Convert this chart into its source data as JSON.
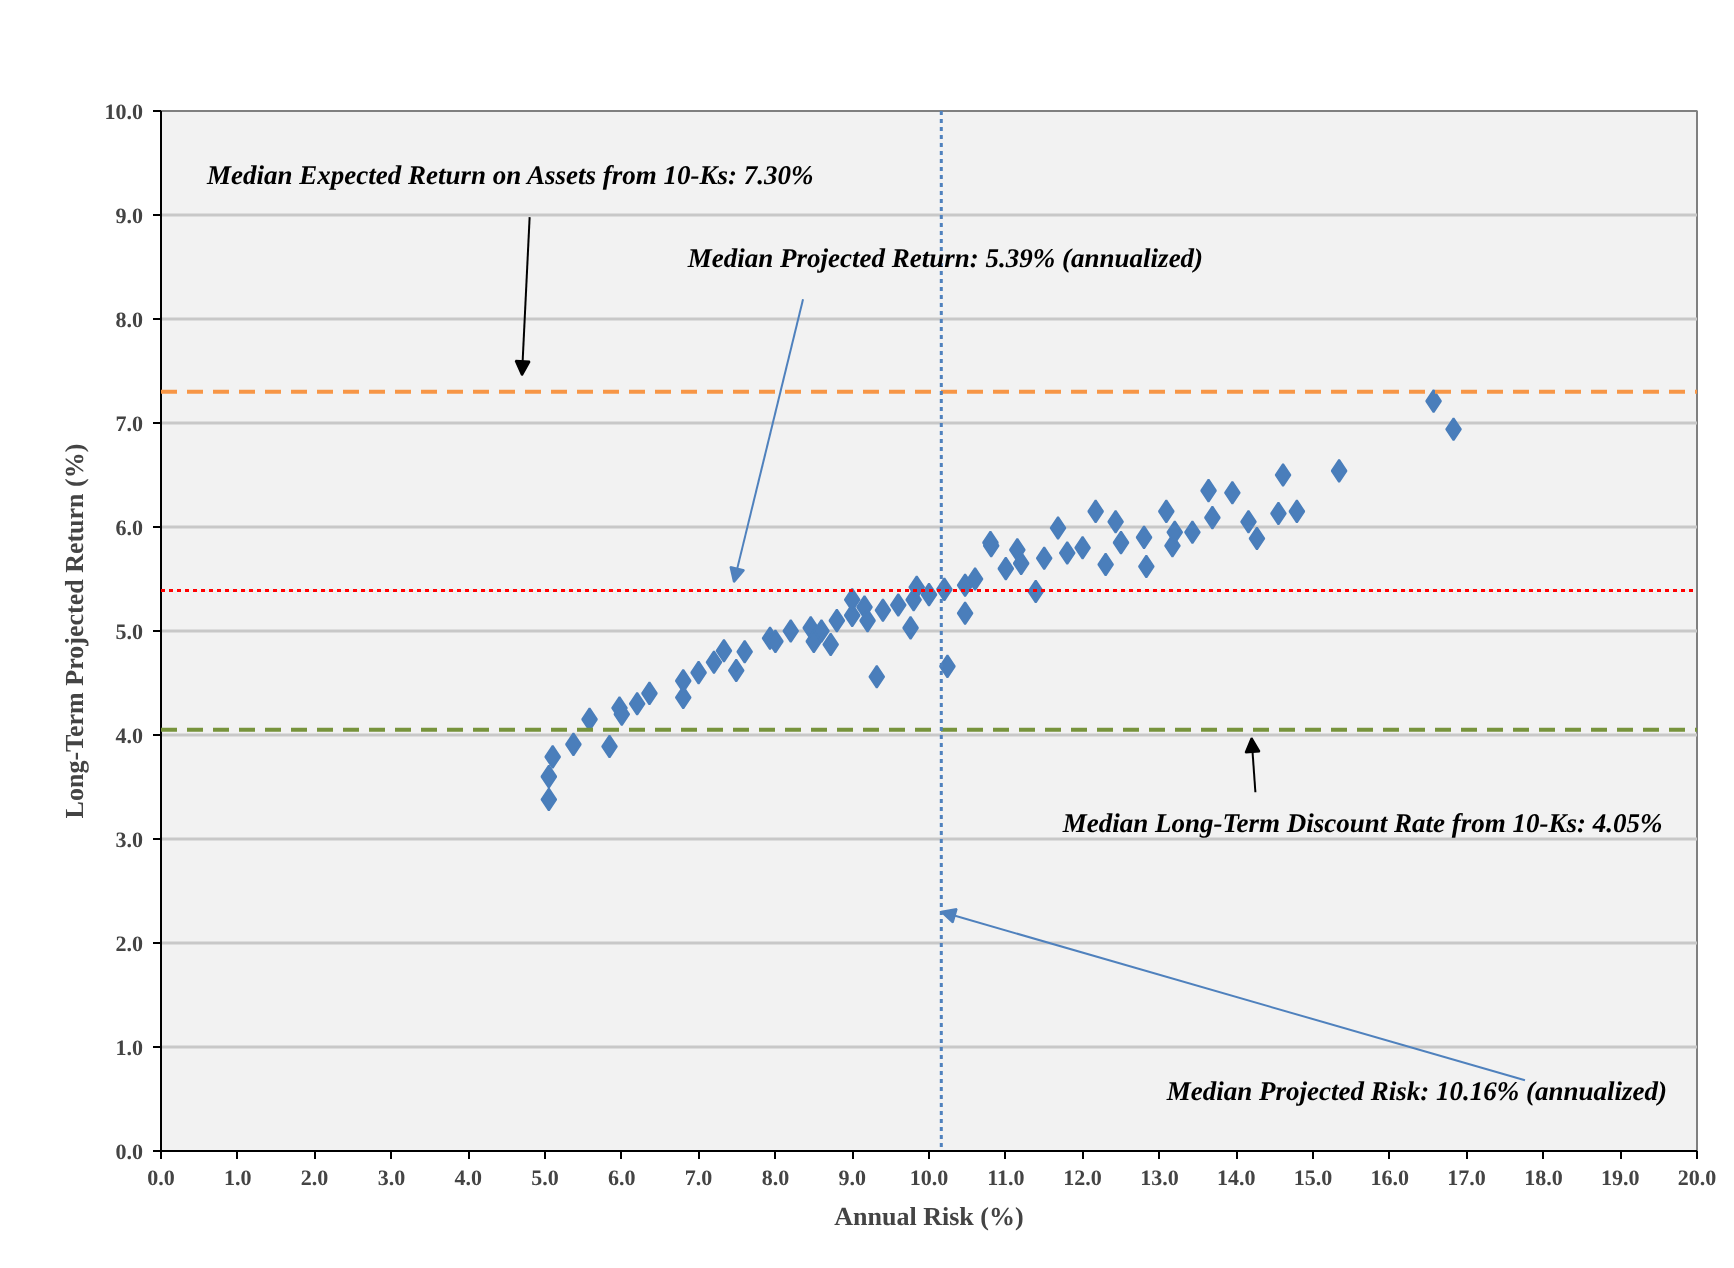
{
  "chart_data": {
    "type": "scatter",
    "xlabel": "Annual Risk (%)",
    "ylabel": "Long-Term Projected Return (%)",
    "xlim": [
      0,
      20
    ],
    "ylim": [
      0,
      10
    ],
    "xticks": [
      {
        "value": 0,
        "label": "0.0"
      },
      {
        "value": 1,
        "label": "1.0"
      },
      {
        "value": 2,
        "label": "2.0"
      },
      {
        "value": 3,
        "label": "3.0"
      },
      {
        "value": 4,
        "label": "4.0"
      },
      {
        "value": 5,
        "label": "5.0"
      },
      {
        "value": 6,
        "label": "6.0"
      },
      {
        "value": 7,
        "label": "7.0"
      },
      {
        "value": 8,
        "label": "8.0"
      },
      {
        "value": 9,
        "label": "9.0"
      },
      {
        "value": 10,
        "label": "10.0"
      },
      {
        "value": 11,
        "label": "11.0"
      },
      {
        "value": 12,
        "label": "12.0"
      },
      {
        "value": 13,
        "label": "13.0"
      },
      {
        "value": 14,
        "label": "14.0"
      },
      {
        "value": 15,
        "label": "15.0"
      },
      {
        "value": 16,
        "label": "16.0"
      },
      {
        "value": 17,
        "label": "17.0"
      },
      {
        "value": 18,
        "label": "18.0"
      },
      {
        "value": 19,
        "label": "19.0"
      },
      {
        "value": 20,
        "label": "20.0"
      }
    ],
    "yticks": [
      {
        "value": 0,
        "label": "0.0"
      },
      {
        "value": 1,
        "label": "1.0"
      },
      {
        "value": 2,
        "label": "2.0"
      },
      {
        "value": 3,
        "label": "3.0"
      },
      {
        "value": 4,
        "label": "4.0"
      },
      {
        "value": 5,
        "label": "5.0"
      },
      {
        "value": 6,
        "label": "6.0"
      },
      {
        "value": 7,
        "label": "7.0"
      },
      {
        "value": 8,
        "label": "8.0"
      },
      {
        "value": 9,
        "label": "9.0"
      },
      {
        "value": 10,
        "label": "10.0"
      }
    ],
    "grid": "y",
    "marker": "diamond",
    "series": [
      {
        "color": "#4a7ebb",
        "x": [
          5.05,
          5.05,
          5.1,
          5.37,
          5.84,
          5.58,
          5.97,
          6.0,
          6.2,
          6.36,
          6.8,
          6.8,
          7.0,
          7.2,
          7.33,
          7.49,
          7.6,
          7.93,
          8.0,
          8.2,
          8.46,
          8.5,
          8.6,
          8.72,
          8.8,
          9.0,
          9.0,
          9.16,
          9.2,
          9.32,
          9.4,
          9.6,
          9.76,
          9.8,
          9.84,
          10.0,
          10.2,
          10.24,
          10.47,
          10.47,
          10.6,
          10.8,
          10.81,
          11.0,
          11.15,
          11.2,
          11.39,
          11.5,
          11.68,
          11.8,
          12.0,
          12.17,
          12.3,
          12.43,
          12.5,
          12.8,
          12.83,
          13.09,
          13.17,
          13.2,
          13.43,
          13.64,
          13.69,
          13.95,
          14.16,
          14.27,
          14.55,
          14.61,
          14.79,
          15.34,
          16.57,
          16.83
        ],
        "values": [
          3.38,
          3.6,
          3.79,
          3.91,
          3.89,
          4.15,
          4.26,
          4.2,
          4.3,
          4.4,
          4.36,
          4.52,
          4.6,
          4.7,
          4.81,
          4.62,
          4.8,
          4.93,
          4.9,
          5.0,
          5.03,
          4.9,
          5.0,
          4.87,
          5.1,
          5.15,
          5.3,
          5.23,
          5.1,
          4.56,
          5.2,
          5.25,
          5.03,
          5.3,
          5.42,
          5.35,
          5.4,
          4.66,
          5.44,
          5.17,
          5.5,
          5.85,
          5.82,
          5.6,
          5.78,
          5.65,
          5.38,
          5.7,
          5.99,
          5.75,
          5.8,
          6.15,
          5.64,
          6.05,
          5.85,
          5.9,
          5.62,
          6.15,
          5.82,
          5.95,
          5.95,
          6.35,
          6.09,
          6.33,
          6.05,
          5.89,
          6.13,
          6.5,
          6.15,
          6.54,
          7.21,
          6.94
        ]
      }
    ],
    "ref_lines": [
      {
        "axis": "y",
        "value": 7.3,
        "color": "#f79646",
        "line_style": "dashed"
      },
      {
        "axis": "y",
        "value": 5.39,
        "color": "#ff0000",
        "line_style": "dotted"
      },
      {
        "axis": "y",
        "value": 4.05,
        "color": "#77933c",
        "line_style": "dashed"
      },
      {
        "axis": "x",
        "value": 10.16,
        "color": "#4f81bd",
        "line_style": "dotted"
      }
    ],
    "annotations": [
      "Median Expected Return on Assets from 10-Ks: 7.30%",
      {
        "text": "Median Projected Return: 5.39% (annualized)",
        "x": 7.46,
        "y": 5.39
      },
      {
        "text": "Median Long-Term Discount Rate from 10-Ks: 4.05%",
        "x": 14.2,
        "y": 4.05
      },
      {
        "text": "Median Projected Risk: 10.16% (annualized)",
        "x": 10.16,
        "y": 2.38
      }
    ]
  }
}
